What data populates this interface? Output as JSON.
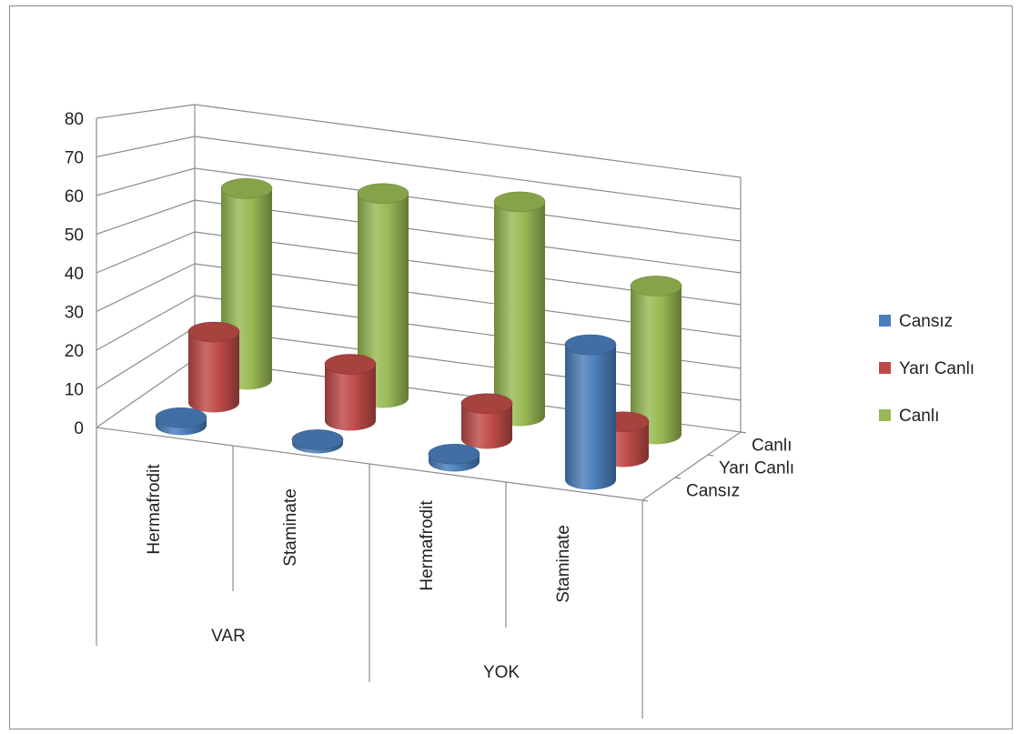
{
  "chart_data": {
    "type": "bar",
    "style": "3d-cylinder",
    "title": "",
    "ylim": [
      0,
      80
    ],
    "y_ticks": [
      0,
      10,
      20,
      30,
      40,
      50,
      60,
      70,
      80
    ],
    "groups": [
      {
        "label": "VAR",
        "categories": [
          "Hermafrodit",
          "Staminate"
        ]
      },
      {
        "label": "YOK",
        "categories": [
          "Hermafrodit",
          "Staminate"
        ]
      }
    ],
    "categories": [
      "Hermafrodit",
      "Staminate",
      "Hermafrodit",
      "Staminate"
    ],
    "depth_labels": [
      "Cansız",
      "Yarı Canlı",
      "Canlı"
    ],
    "series": [
      {
        "name": "Cansız",
        "color": "#4a7ebb",
        "values": [
          2,
          1,
          2,
          36
        ]
      },
      {
        "name": "Yarı Canlı",
        "color": "#be4b48",
        "values": [
          20,
          16,
          10,
          10
        ]
      },
      {
        "name": "Canlı",
        "color": "#98b954",
        "values": [
          58,
          62,
          65,
          45
        ]
      }
    ],
    "legend_position": "right",
    "grid": true
  }
}
